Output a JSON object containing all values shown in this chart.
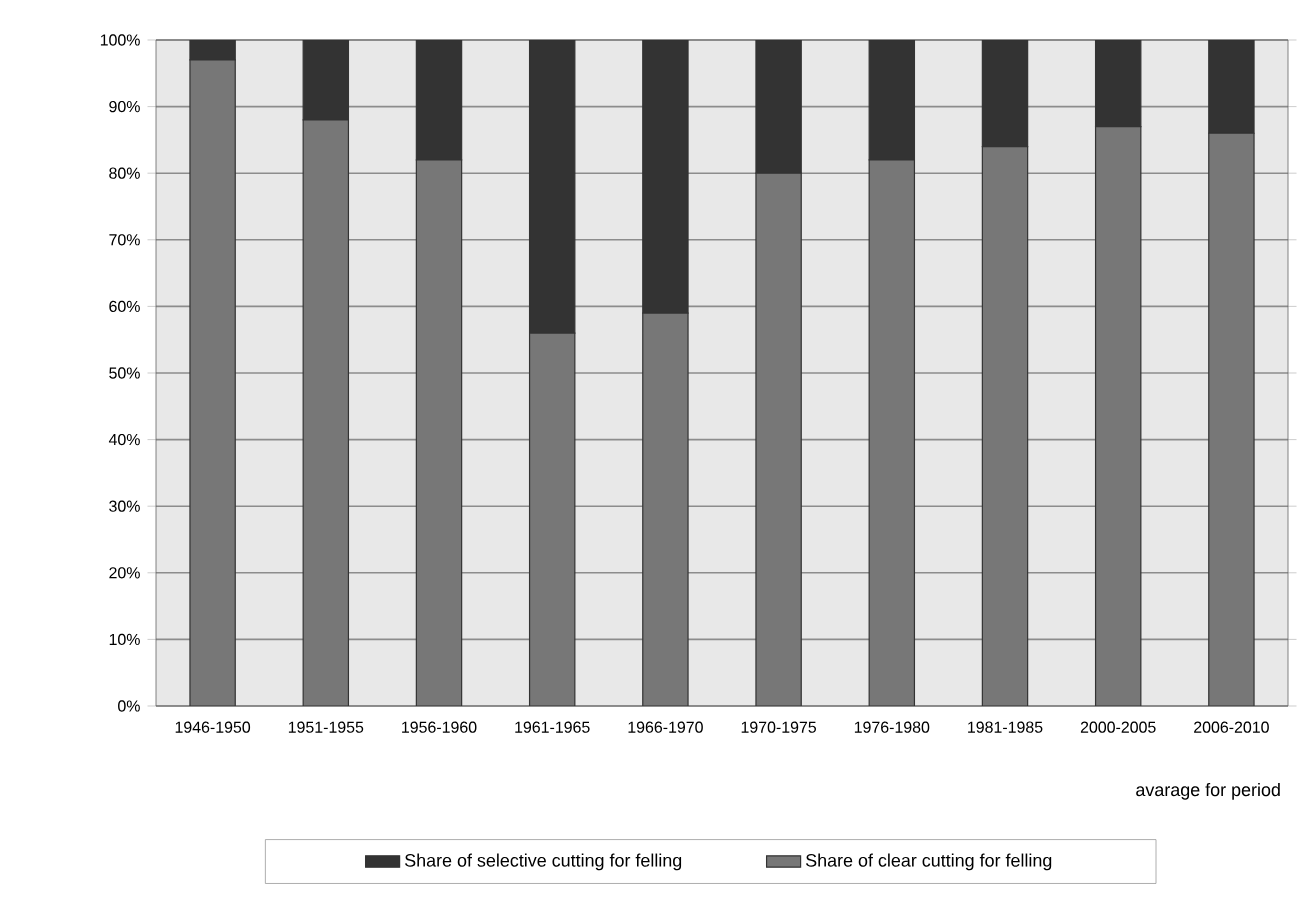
{
  "chart_data": {
    "type": "bar",
    "stacked": true,
    "xlabel": "avarage for period",
    "categories": [
      "1946-1950",
      "1951-1955",
      "1956-1960",
      "1961-1965",
      "1966-1970",
      "1970-1975",
      "1976-1980",
      "1981-1985",
      "2000-2005",
      "2006-2010"
    ],
    "series": [
      {
        "name": "Share of clear cutting for felling",
        "color": "#777777",
        "values": [
          97,
          88,
          82,
          56,
          59,
          80,
          82,
          84,
          87,
          86
        ]
      },
      {
        "name": "Share of selective cutting for felling",
        "color": "#333333",
        "values": [
          3,
          12,
          18,
          44,
          41,
          20,
          18,
          16,
          13,
          14
        ]
      }
    ],
    "ylim": [
      0,
      100
    ],
    "yticks": [
      {
        "value": 0,
        "label": "0%"
      },
      {
        "value": 10,
        "label": "10%"
      },
      {
        "value": 20,
        "label": "20%"
      },
      {
        "value": 30,
        "label": "30%"
      },
      {
        "value": 40,
        "label": "40%"
      },
      {
        "value": 50,
        "label": "50%"
      },
      {
        "value": 60,
        "label": "60%"
      },
      {
        "value": 70,
        "label": "70%"
      },
      {
        "value": 80,
        "label": "80%"
      },
      {
        "value": 90,
        "label": "90%"
      },
      {
        "value": 100,
        "label": "100%"
      }
    ],
    "grid": "y",
    "legend": "bottom"
  }
}
